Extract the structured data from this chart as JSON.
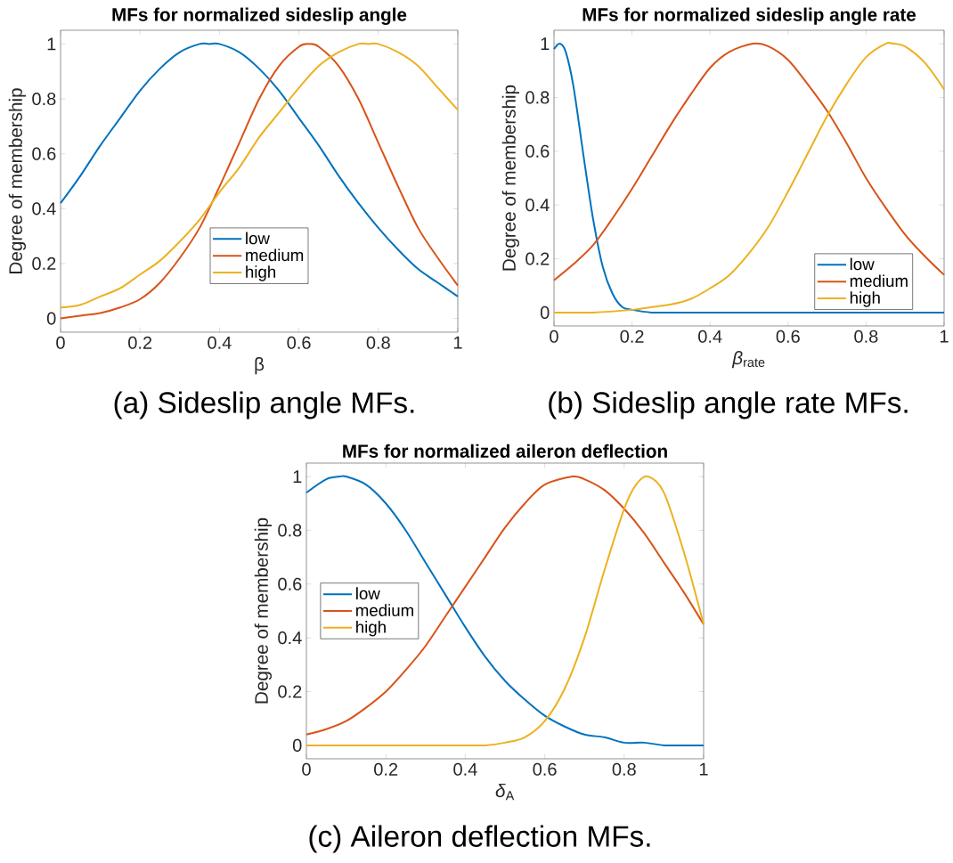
{
  "chart_data": [
    {
      "type": "line",
      "title": "MFs for normalized sideslip angle",
      "xlabel": "β",
      "ylabel": "Degree of membership",
      "xlim": [
        0,
        1
      ],
      "ylim": [
        -0.05,
        1.05
      ],
      "xticks": [
        0,
        0.2,
        0.4,
        0.6,
        0.8,
        1
      ],
      "yticks": [
        0,
        0.2,
        0.4,
        0.6,
        0.8,
        1
      ],
      "legend": "bottom",
      "annotations": [
        "(a) Sideslip angle MFs."
      ],
      "series": [
        {
          "name": "low",
          "color": "#0072bd",
          "x": [
            0,
            0.05,
            0.1,
            0.15,
            0.2,
            0.25,
            0.3,
            0.35,
            0.375,
            0.4,
            0.45,
            0.5,
            0.55,
            0.6,
            0.65,
            0.7,
            0.75,
            0.8,
            0.85,
            0.9,
            0.95,
            1
          ],
          "values": [
            0.42,
            0.52,
            0.63,
            0.73,
            0.83,
            0.91,
            0.97,
            1.0,
            1.0,
            1.0,
            0.97,
            0.91,
            0.83,
            0.73,
            0.63,
            0.52,
            0.42,
            0.33,
            0.25,
            0.18,
            0.13,
            0.08
          ]
        },
        {
          "name": "medium",
          "color": "#d95319",
          "x": [
            0,
            0.05,
            0.1,
            0.15,
            0.2,
            0.25,
            0.3,
            0.35,
            0.4,
            0.45,
            0.5,
            0.55,
            0.6,
            0.625,
            0.65,
            0.7,
            0.75,
            0.8,
            0.85,
            0.9,
            0.95,
            1
          ],
          "values": [
            0.0,
            0.01,
            0.02,
            0.04,
            0.07,
            0.13,
            0.22,
            0.33,
            0.48,
            0.64,
            0.8,
            0.92,
            0.99,
            1.0,
            0.99,
            0.92,
            0.8,
            0.64,
            0.48,
            0.33,
            0.22,
            0.12
          ]
        },
        {
          "name": "high",
          "color": "#edb120",
          "x": [
            0,
            0.05,
            0.1,
            0.15,
            0.2,
            0.25,
            0.3,
            0.35,
            0.4,
            0.45,
            0.5,
            0.55,
            0.6,
            0.65,
            0.7,
            0.75,
            0.775,
            0.8,
            0.85,
            0.9,
            0.95,
            1
          ],
          "values": [
            0.04,
            0.05,
            0.08,
            0.11,
            0.16,
            0.21,
            0.28,
            0.36,
            0.46,
            0.55,
            0.66,
            0.75,
            0.84,
            0.92,
            0.97,
            1.0,
            1.0,
            1.0,
            0.97,
            0.92,
            0.84,
            0.76
          ]
        }
      ]
    },
    {
      "type": "line",
      "title": "MFs for normalized sideslip angle rate",
      "xlabel": "*β*$_{rate}$",
      "ylabel": "Degree of membership",
      "xlim": [
        0,
        1
      ],
      "ylim": [
        -0.05,
        1.05
      ],
      "xticks": [
        0,
        0.2,
        0.4,
        0.6,
        0.8,
        1
      ],
      "yticks": [
        0,
        0.2,
        0.4,
        0.6,
        0.8,
        1
      ],
      "legend": "bottom right",
      "annotations": [
        "(b) Sideslip angle rate MFs."
      ],
      "series": [
        {
          "name": "low",
          "color": "#0072bd",
          "x": [
            0,
            0.015,
            0.03,
            0.05,
            0.075,
            0.1,
            0.125,
            0.15,
            0.175,
            0.2,
            0.25,
            0.3,
            0.5,
            0.7,
            1
          ],
          "values": [
            0.98,
            1.0,
            0.97,
            0.84,
            0.59,
            0.35,
            0.17,
            0.07,
            0.02,
            0.01,
            0.0,
            0.0,
            0.0,
            0.0,
            0.0
          ]
        },
        {
          "name": "medium",
          "color": "#d95319",
          "x": [
            0,
            0.05,
            0.1,
            0.15,
            0.2,
            0.25,
            0.3,
            0.35,
            0.4,
            0.45,
            0.51,
            0.55,
            0.6,
            0.65,
            0.7,
            0.75,
            0.8,
            0.85,
            0.9,
            0.95,
            1
          ],
          "values": [
            0.12,
            0.18,
            0.25,
            0.35,
            0.46,
            0.58,
            0.7,
            0.81,
            0.91,
            0.97,
            1.0,
            0.99,
            0.94,
            0.85,
            0.75,
            0.63,
            0.5,
            0.39,
            0.29,
            0.21,
            0.14
          ]
        },
        {
          "name": "high",
          "color": "#edb120",
          "x": [
            0,
            0.1,
            0.2,
            0.25,
            0.3,
            0.35,
            0.4,
            0.45,
            0.5,
            0.55,
            0.6,
            0.65,
            0.7,
            0.75,
            0.8,
            0.85,
            0.87,
            0.9,
            0.95,
            1
          ],
          "values": [
            0.0,
            0.0,
            0.01,
            0.02,
            0.03,
            0.05,
            0.09,
            0.14,
            0.22,
            0.32,
            0.45,
            0.59,
            0.73,
            0.85,
            0.95,
            1.0,
            1.0,
            0.99,
            0.93,
            0.83
          ]
        }
      ]
    },
    {
      "type": "line",
      "title": "MFs for normalized aileron deflection",
      "xlabel": "*δ*$_{A}$",
      "ylabel": "Degree of membership",
      "xlim": [
        0,
        1
      ],
      "ylim": [
        -0.05,
        1.05
      ],
      "xticks": [
        0,
        0.2,
        0.4,
        0.6,
        0.8,
        1
      ],
      "yticks": [
        0,
        0.2,
        0.4,
        0.6,
        0.8,
        1
      ],
      "legend": "left",
      "annotations": [
        "(c) Aileron deflection MFs."
      ],
      "series": [
        {
          "name": "low",
          "color": "#0072bd",
          "x": [
            0,
            0.05,
            0.085,
            0.1,
            0.15,
            0.2,
            0.25,
            0.3,
            0.35,
            0.4,
            0.45,
            0.5,
            0.55,
            0.6,
            0.65,
            0.7,
            0.75,
            0.8,
            0.85,
            0.9,
            0.95,
            1
          ],
          "values": [
            0.94,
            0.99,
            1.0,
            1.0,
            0.97,
            0.9,
            0.8,
            0.68,
            0.56,
            0.44,
            0.33,
            0.24,
            0.17,
            0.11,
            0.07,
            0.04,
            0.03,
            0.01,
            0.01,
            0.0,
            0.0,
            0.0
          ]
        },
        {
          "name": "medium",
          "color": "#d95319",
          "x": [
            0,
            0.05,
            0.1,
            0.15,
            0.2,
            0.25,
            0.3,
            0.35,
            0.4,
            0.45,
            0.5,
            0.55,
            0.6,
            0.67,
            0.7,
            0.75,
            0.8,
            0.85,
            0.9,
            0.95,
            1
          ],
          "values": [
            0.04,
            0.06,
            0.09,
            0.14,
            0.2,
            0.28,
            0.37,
            0.48,
            0.59,
            0.7,
            0.81,
            0.9,
            0.97,
            1.0,
            0.99,
            0.95,
            0.88,
            0.79,
            0.68,
            0.57,
            0.45
          ]
        },
        {
          "name": "high",
          "color": "#edb120",
          "x": [
            0,
            0.4,
            0.45,
            0.5,
            0.55,
            0.6,
            0.65,
            0.7,
            0.75,
            0.8,
            0.83,
            0.86,
            0.9,
            0.95,
            1
          ],
          "values": [
            0.0,
            0.0,
            0.0,
            0.01,
            0.03,
            0.09,
            0.21,
            0.4,
            0.65,
            0.88,
            0.97,
            1.0,
            0.94,
            0.72,
            0.45
          ]
        }
      ]
    }
  ]
}
